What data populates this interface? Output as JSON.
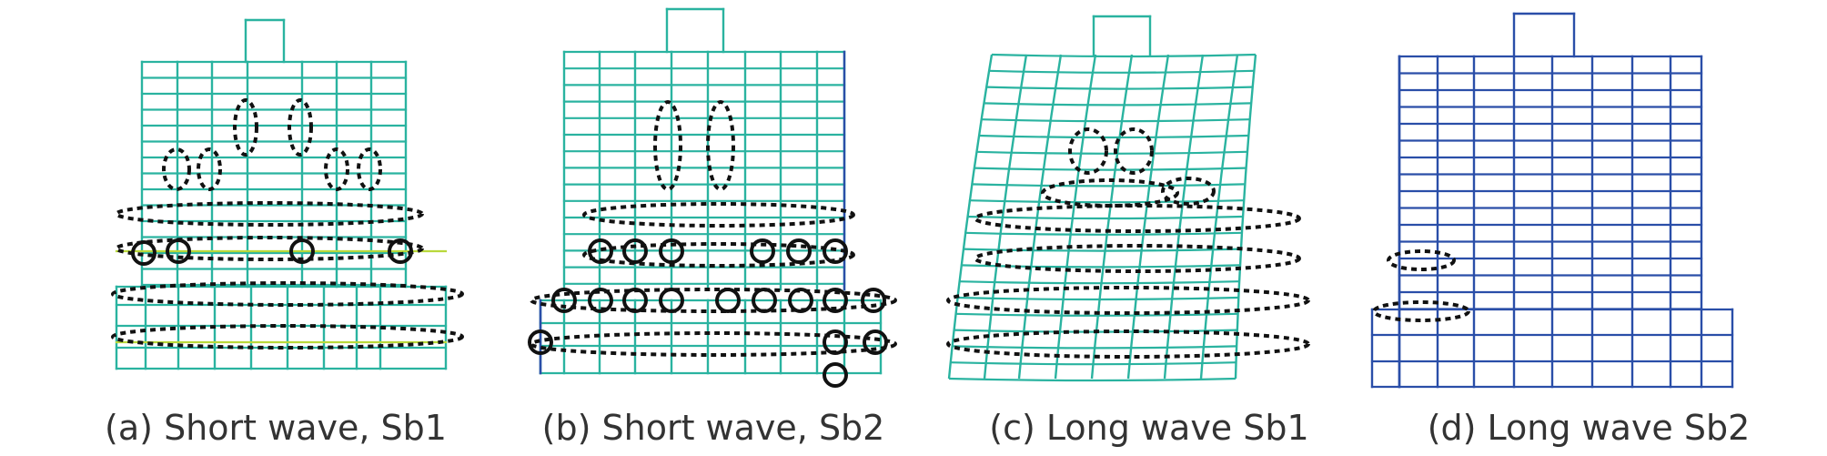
{
  "colors": {
    "background": "#ffffff",
    "frame_teal": "#2ab3a0",
    "frame_blue": "#2a4ea8",
    "highlight": "#b9d83b",
    "marker": "#111111",
    "caption": "#333333"
  },
  "panels": [
    {
      "caption": "(a) Short wave, Sb1",
      "frame_color": "frame_teal",
      "deformation": "mild sway",
      "damage_markers": "dotted ellipses on floors and columns, solid circles at beam joints"
    },
    {
      "caption": "(b) Short wave, Sb2",
      "frame_color": "frame_teal",
      "deformation": "mild sway",
      "damage_markers": "dotted ellipses on floors and columns, many solid circles at beam joints"
    },
    {
      "caption": "(c) Long wave Sb1",
      "frame_color": "frame_teal",
      "deformation": "bent frame",
      "damage_markers": "dotted ellipses across lower floors"
    },
    {
      "caption": "(d) Long wave Sb2",
      "frame_color": "frame_blue",
      "deformation": "nearly undeformed",
      "damage_markers": "two small dotted ellipses at left column"
    }
  ]
}
